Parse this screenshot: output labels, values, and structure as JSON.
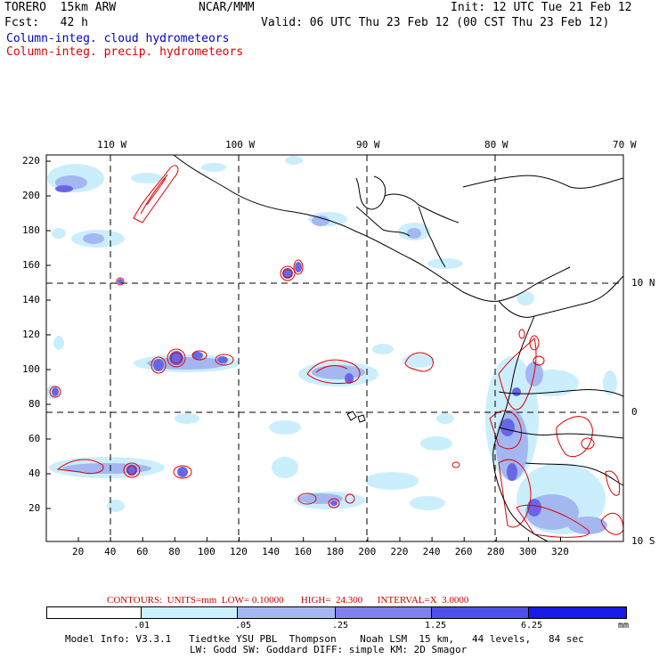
{
  "header": {
    "model": "TORERO  15km ARW",
    "org": "NCAR/MMM",
    "init": "Init: 12 UTC Tue 21 Feb 12",
    "fcst": "Fcst:   42 h",
    "valid": "Valid: 06 UTC Thu 23 Feb 12 (00 CST Thu 23 Feb 12)",
    "field1": "Column-integ. cloud hydrometeors",
    "field2": "Column-integ. precip. hydrometeors"
  },
  "map": {
    "lon_labels": [
      "110 W",
      "100 W",
      "90 W",
      "80 W",
      "70 W"
    ],
    "lat_labels": [
      "10 N",
      "0",
      "10 S"
    ],
    "y_ticks": [
      "220",
      "200",
      "180",
      "160",
      "140",
      "120",
      "100",
      "80",
      "60",
      "40",
      "20"
    ],
    "x_ticks": [
      "20",
      "40",
      "60",
      "80",
      "100",
      "120",
      "140",
      "160",
      "180",
      "200",
      "220",
      "240",
      "260",
      "280",
      "300",
      "320"
    ]
  },
  "contour_info": {
    "label": "CONTOURS:  UNITS=mm  LOW= 0.10000       HIGH=  24.300      INTERVAL=X  3.0000"
  },
  "colorbar": {
    "labels": [
      ".01",
      ".05",
      ".25",
      "1.25",
      "6.25"
    ],
    "units": "mm",
    "colors": [
      "#ffffff",
      "#ccf2ff",
      "#a6b8f2",
      "#8080ee",
      "#5050ea",
      "#1a1ae6"
    ]
  },
  "footer": {
    "line1": "Model Info: V3.3.1   Tiedtke YSU PBL  Thompson    Noah LSM  15 km,   44 levels,   84 sec",
    "line2": "LW: Godd SW: Goddard DIFF: simple KM: 2D Smagor"
  }
}
